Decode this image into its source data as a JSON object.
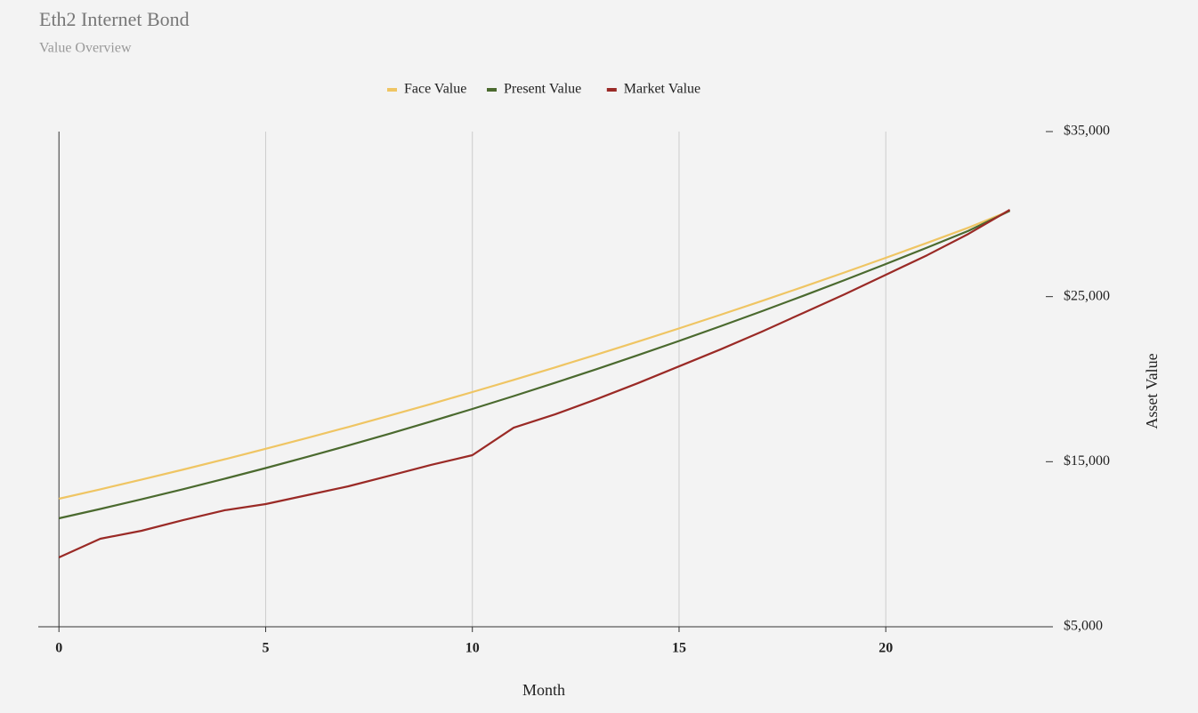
{
  "chart_data": {
    "type": "line",
    "title": "Eth2 Internet Bond",
    "subtitle": "Value Overview",
    "x_label": "Month",
    "y_label": "Asset Value",
    "x": [
      0,
      1,
      2,
      3,
      4,
      5,
      6,
      7,
      8,
      9,
      10,
      11,
      12,
      13,
      14,
      15,
      16,
      17,
      18,
      19,
      20,
      21,
      22,
      23
    ],
    "series": [
      {
        "name": "Face Value",
        "color": "#efc563",
        "values": [
          12756,
          13327,
          13915,
          14520,
          15141,
          15779,
          16434,
          17105,
          17793,
          18497,
          19219,
          19957,
          20712,
          21483,
          22271,
          23076,
          23898,
          24736,
          25591,
          26463,
          27352,
          28257,
          29179,
          30200
        ]
      },
      {
        "name": "Present Value",
        "color": "#4b6a2f",
        "values": [
          11571,
          12137,
          12724,
          13332,
          13963,
          14614,
          15288,
          15982,
          16699,
          17437,
          18196,
          18977,
          19780,
          20604,
          21449,
          22316,
          23205,
          24115,
          25047,
          26000,
          26975,
          27971,
          28989,
          30200
        ]
      },
      {
        "name": "Market Value",
        "color": "#9a2a26",
        "values": [
          9201,
          10332,
          10817,
          11463,
          12055,
          12432,
          12971,
          13510,
          14156,
          14803,
          15395,
          17060,
          17868,
          18784,
          19753,
          20777,
          21800,
          22877,
          24008,
          25139,
          26324,
          27509,
          28801,
          30260
        ]
      }
    ],
    "xlim": [
      -0.5,
      24
    ],
    "ylim": [
      5000,
      35000
    ],
    "xticks": [
      0,
      5,
      10,
      15,
      20
    ],
    "yticks": [
      {
        "value": 5000,
        "label": "$5,000"
      },
      {
        "value": 15000,
        "label": "$15,000"
      },
      {
        "value": 25000,
        "label": "$25,000"
      },
      {
        "value": 35000,
        "label": "$35,000"
      }
    ],
    "xgrid": true,
    "legend": "top"
  }
}
